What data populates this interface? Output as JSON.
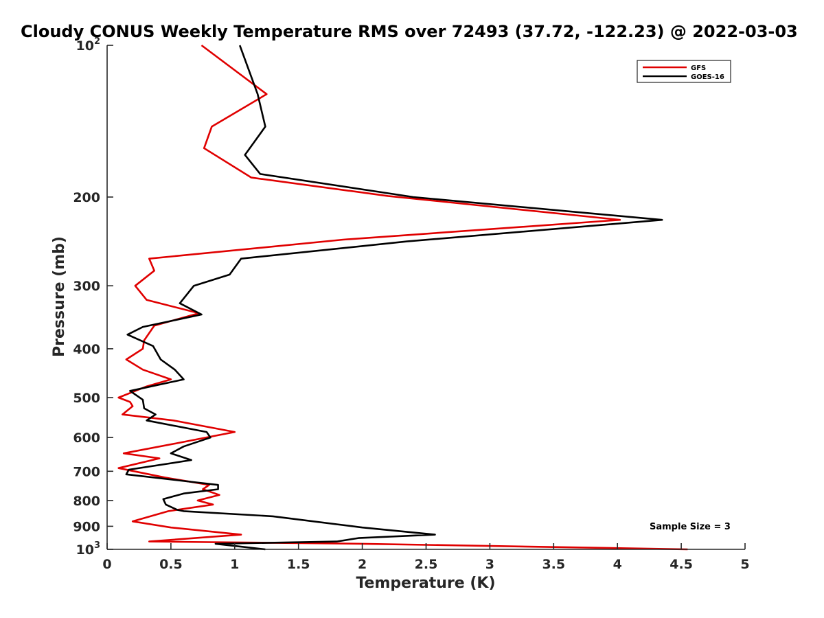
{
  "chart_data": {
    "type": "line",
    "title": "Cloudy CONUS Weekly Temperature RMS over 72493 (37.72, -122.23) @ 2022-03-03",
    "xlabel": "Temperature (K)",
    "ylabel": "Pressure (mb)",
    "xlim": [
      0,
      5
    ],
    "ylim": [
      100,
      1000
    ],
    "y_scale": "log",
    "y_reversed": true,
    "x_ticks": [
      "0",
      "0.5",
      "1",
      "1.5",
      "2",
      "2.5",
      "3",
      "3.5",
      "4",
      "4.5",
      "5"
    ],
    "y_ticks": [
      {
        "value": 100,
        "base": "10",
        "exp": "2"
      },
      {
        "value": 200,
        "label": "200"
      },
      {
        "value": 300,
        "label": "300"
      },
      {
        "value": 400,
        "label": "400"
      },
      {
        "value": 500,
        "label": "500"
      },
      {
        "value": 600,
        "label": "600"
      },
      {
        "value": 700,
        "label": "700"
      },
      {
        "value": 800,
        "label": "800"
      },
      {
        "value": 900,
        "label": "900"
      },
      {
        "value": 1000,
        "base": "10",
        "exp": "3"
      }
    ],
    "grid": false,
    "legend_position": "top-right",
    "annotation": "Sample Size = 3",
    "series": [
      {
        "name": "GFS",
        "color": "#e00000",
        "points": [
          [
            0.74,
            100
          ],
          [
            1.25,
            125
          ],
          [
            0.82,
            145
          ],
          [
            0.76,
            160
          ],
          [
            1.13,
            183
          ],
          [
            2.2,
            199
          ],
          [
            4.02,
            222
          ],
          [
            1.85,
            243
          ],
          [
            0.33,
            265
          ],
          [
            0.37,
            280
          ],
          [
            0.22,
            300
          ],
          [
            0.31,
            320
          ],
          [
            0.72,
            340
          ],
          [
            0.37,
            360
          ],
          [
            0.29,
            385
          ],
          [
            0.28,
            400
          ],
          [
            0.15,
            420
          ],
          [
            0.28,
            440
          ],
          [
            0.5,
            460
          ],
          [
            0.31,
            475
          ],
          [
            0.09,
            500
          ],
          [
            0.18,
            510
          ],
          [
            0.2,
            520
          ],
          [
            0.12,
            540
          ],
          [
            0.52,
            555
          ],
          [
            1.0,
            585
          ],
          [
            0.56,
            615
          ],
          [
            0.13,
            645
          ],
          [
            0.41,
            660
          ],
          [
            0.09,
            690
          ],
          [
            0.45,
            720
          ],
          [
            0.8,
            745
          ],
          [
            0.75,
            760
          ],
          [
            0.88,
            780
          ],
          [
            0.71,
            800
          ],
          [
            0.83,
            815
          ],
          [
            0.48,
            840
          ],
          [
            0.2,
            880
          ],
          [
            0.5,
            905
          ],
          [
            1.05,
            935
          ],
          [
            0.33,
            965
          ],
          [
            2.0,
            975
          ],
          [
            4.55,
            1000
          ]
        ]
      },
      {
        "name": "GOES-16",
        "color": "#000000",
        "points": [
          [
            1.04,
            100
          ],
          [
            1.18,
            125
          ],
          [
            1.24,
            145
          ],
          [
            1.08,
            165
          ],
          [
            1.2,
            180
          ],
          [
            2.4,
            200
          ],
          [
            4.35,
            222
          ],
          [
            2.35,
            245
          ],
          [
            1.05,
            265
          ],
          [
            0.96,
            285
          ],
          [
            0.68,
            300
          ],
          [
            0.57,
            325
          ],
          [
            0.74,
            342
          ],
          [
            0.28,
            362
          ],
          [
            0.16,
            375
          ],
          [
            0.36,
            395
          ],
          [
            0.42,
            420
          ],
          [
            0.53,
            440
          ],
          [
            0.6,
            460
          ],
          [
            0.18,
            485
          ],
          [
            0.28,
            505
          ],
          [
            0.29,
            525
          ],
          [
            0.38,
            540
          ],
          [
            0.31,
            555
          ],
          [
            0.78,
            585
          ],
          [
            0.81,
            600
          ],
          [
            0.6,
            625
          ],
          [
            0.5,
            645
          ],
          [
            0.66,
            665
          ],
          [
            0.17,
            695
          ],
          [
            0.15,
            710
          ],
          [
            0.87,
            745
          ],
          [
            0.87,
            760
          ],
          [
            0.6,
            775
          ],
          [
            0.44,
            795
          ],
          [
            0.46,
            815
          ],
          [
            0.55,
            835
          ],
          [
            0.6,
            840
          ],
          [
            1.3,
            860
          ],
          [
            2.0,
            905
          ],
          [
            2.57,
            935
          ],
          [
            1.97,
            950
          ],
          [
            1.8,
            965
          ],
          [
            0.85,
            975
          ],
          [
            1.24,
            1000
          ]
        ]
      }
    ]
  }
}
